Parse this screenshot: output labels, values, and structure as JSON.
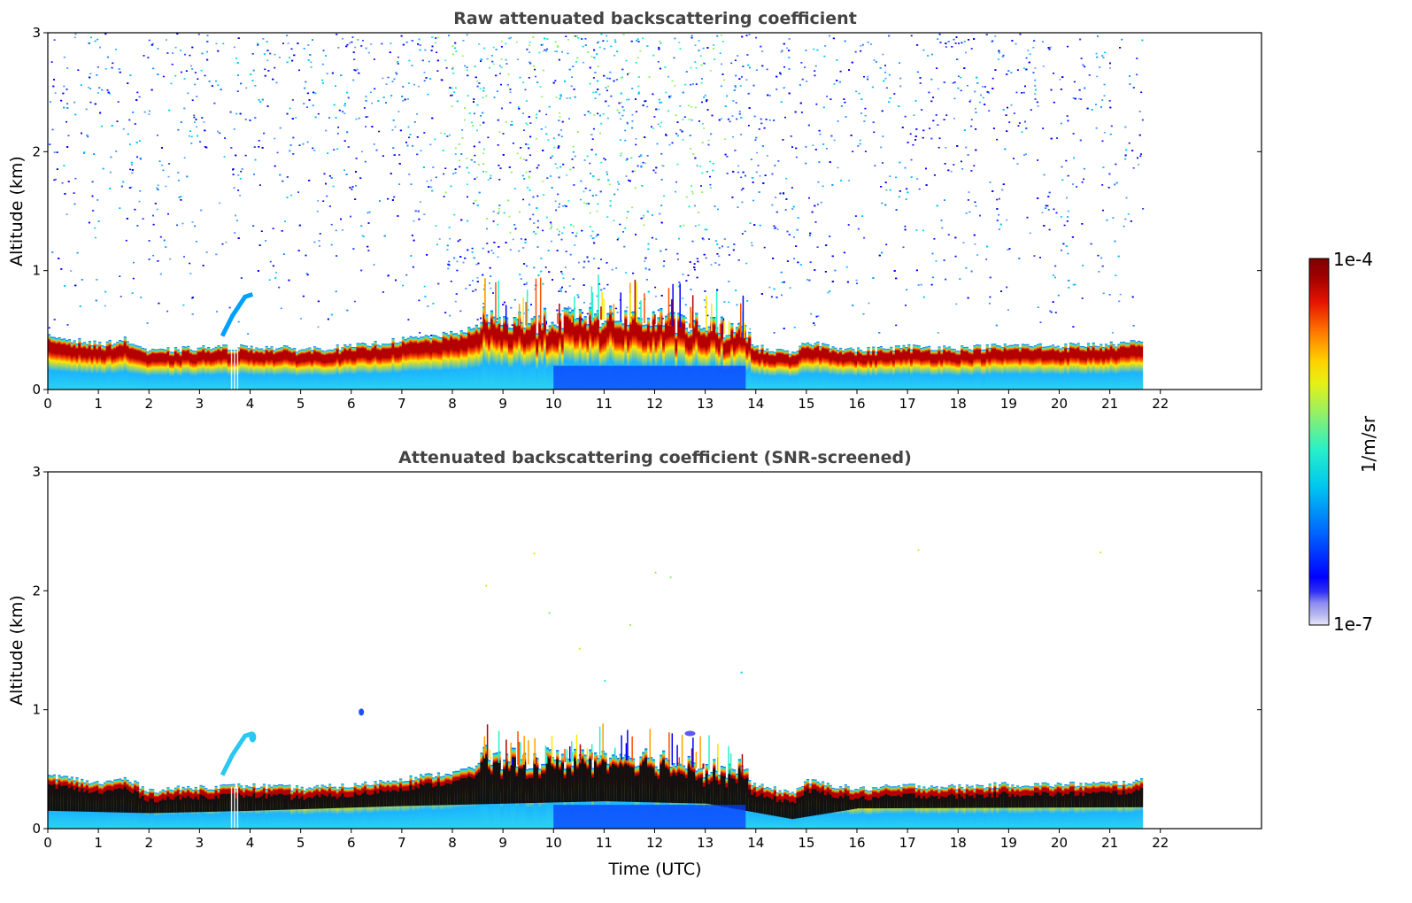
{
  "chart_data": [
    {
      "type": "heatmap",
      "title": "Raw attenuated backscattering coefficient",
      "xlabel": "",
      "ylabel": "Altitude (km)",
      "xlim": [
        0,
        24
      ],
      "ylim": [
        0,
        3
      ],
      "xticks": [
        "0",
        "1",
        "2",
        "3",
        "4",
        "5",
        "6",
        "7",
        "8",
        "9",
        "10",
        "11",
        "12",
        "13",
        "14",
        "15",
        "16",
        "17",
        "18",
        "19",
        "20",
        "21",
        "22"
      ],
      "yticks": [
        "0",
        "1",
        "2",
        "3"
      ],
      "data_end_time": 21.65,
      "layer_top_km": [
        [
          0,
          0.45
        ],
        [
          1,
          0.38
        ],
        [
          1.5,
          0.42
        ],
        [
          2,
          0.32
        ],
        [
          3,
          0.35
        ],
        [
          4,
          0.36
        ],
        [
          5,
          0.34
        ],
        [
          6,
          0.36
        ],
        [
          7,
          0.42
        ],
        [
          8,
          0.47
        ],
        [
          8.7,
          0.55
        ],
        [
          9,
          0.48
        ],
        [
          10,
          0.5
        ],
        [
          11,
          0.54
        ],
        [
          12,
          0.5
        ],
        [
          13,
          0.45
        ],
        [
          14,
          0.36
        ],
        [
          14.7,
          0.3
        ],
        [
          15,
          0.4
        ],
        [
          16,
          0.33
        ],
        [
          17,
          0.36
        ],
        [
          18,
          0.35
        ],
        [
          19,
          0.37
        ],
        [
          20,
          0.37
        ],
        [
          21,
          0.38
        ],
        [
          21.65,
          0.4
        ]
      ],
      "layer_base_km": [
        [
          0,
          0.12
        ],
        [
          2,
          0.1
        ],
        [
          4,
          0.12
        ],
        [
          7,
          0.16
        ],
        [
          9,
          0.18
        ],
        [
          11,
          0.2
        ],
        [
          13,
          0.18
        ],
        [
          14.7,
          0.05
        ],
        [
          16,
          0.14
        ],
        [
          21.65,
          0.15
        ]
      ],
      "noise": "high"
    },
    {
      "type": "heatmap",
      "title": "Attenuated backscattering coefficient (SNR-screened)",
      "xlabel": "Time (UTC)",
      "ylabel": "Altitude (km)",
      "xlim": [
        0,
        24
      ],
      "ylim": [
        0,
        3
      ],
      "xticks": [
        "0",
        "1",
        "2",
        "3",
        "4",
        "5",
        "6",
        "7",
        "8",
        "9",
        "10",
        "11",
        "12",
        "13",
        "14",
        "15",
        "16",
        "17",
        "18",
        "19",
        "20",
        "21",
        "22"
      ],
      "yticks": [
        "0",
        "1",
        "2",
        "3"
      ],
      "data_end_time": 21.65,
      "noise": "screened"
    }
  ],
  "colorbar": {
    "label": "1/m/sr",
    "max_label": "1e-4",
    "min_label": "1e-7",
    "colors": [
      "#e6e6fa",
      "#b4b4f0",
      "#8c8cf0",
      "#5a5af5",
      "#0000ff",
      "#0050ff",
      "#00a0ff",
      "#00d2f0",
      "#28f0c8",
      "#78f078",
      "#c8f028",
      "#ffe600",
      "#ffa000",
      "#ff5000",
      "#e61400",
      "#b40000",
      "#7f0000"
    ]
  }
}
